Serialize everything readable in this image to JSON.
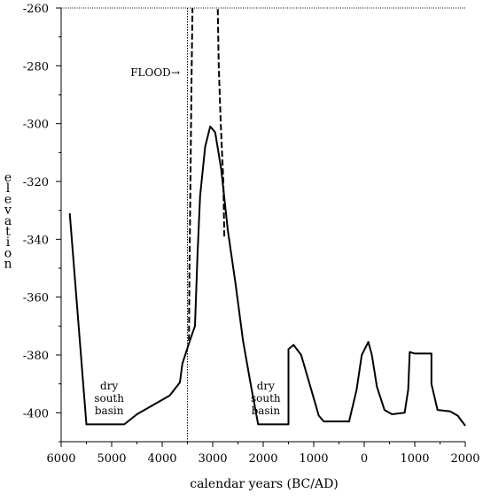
{
  "chart_data": {
    "type": "line",
    "xlabel": "calendar years (BC/AD)",
    "ylabel": "elevation",
    "xlim": [
      -6000,
      2000
    ],
    "ylim": [
      -410,
      -260
    ],
    "x_ticks": [
      {
        "value": -6000,
        "label": "6000"
      },
      {
        "value": -5000,
        "label": "5000"
      },
      {
        "value": -4000,
        "label": "4000"
      },
      {
        "value": -3000,
        "label": "3000"
      },
      {
        "value": -2000,
        "label": "2000"
      },
      {
        "value": -1000,
        "label": "1000"
      },
      {
        "value": 0,
        "label": "0"
      },
      {
        "value": 1000,
        "label": "1000"
      },
      {
        "value": 2000,
        "label": "2000"
      }
    ],
    "y_ticks": [
      {
        "value": -260,
        "label": "-260"
      },
      {
        "value": -280,
        "label": "-280"
      },
      {
        "value": -300,
        "label": "-300"
      },
      {
        "value": -320,
        "label": "-320"
      },
      {
        "value": -340,
        "label": "-340"
      },
      {
        "value": -360,
        "label": "-360"
      },
      {
        "value": -380,
        "label": "-380"
      },
      {
        "value": -400,
        "label": "-400"
      }
    ],
    "grid": false,
    "series": [
      {
        "style": "solid",
        "points": [
          [
            -5830,
            -331
          ],
          [
            -5500,
            -404
          ],
          [
            -4750,
            -404
          ],
          [
            -4500,
            -400.5
          ],
          [
            -4200,
            -397.5
          ],
          [
            -3850,
            -394
          ],
          [
            -3650,
            -389.5
          ],
          [
            -3600,
            -383
          ],
          [
            -3450,
            -375
          ],
          [
            -3350,
            -370
          ],
          [
            -3300,
            -345
          ],
          [
            -3250,
            -325
          ],
          [
            -3150,
            -308
          ],
          [
            -3050,
            -301
          ],
          [
            -2950,
            -303
          ],
          [
            -2830,
            -316
          ],
          [
            -2700,
            -337
          ],
          [
            -2550,
            -355
          ],
          [
            -2400,
            -375
          ],
          [
            -2250,
            -390
          ],
          [
            -2100,
            -404
          ],
          [
            -1500,
            -404
          ],
          [
            -1500,
            -378
          ],
          [
            -1400,
            -376.5
          ],
          [
            -1250,
            -380
          ],
          [
            -1050,
            -392
          ],
          [
            -900,
            -401
          ],
          [
            -800,
            -403
          ],
          [
            -300,
            -403
          ],
          [
            -150,
            -392
          ],
          [
            -50,
            -380
          ],
          [
            80,
            -375.5
          ],
          [
            150,
            -380
          ],
          [
            250,
            -391
          ],
          [
            400,
            -399
          ],
          [
            550,
            -400.5
          ],
          [
            800,
            -400
          ],
          [
            870,
            -392
          ],
          [
            900,
            -379
          ],
          [
            1000,
            -379.5
          ],
          [
            1330,
            -379.5
          ],
          [
            1330,
            -390
          ],
          [
            1450,
            -399
          ],
          [
            1700,
            -399.5
          ],
          [
            1850,
            -401
          ],
          [
            2000,
            -404.5
          ]
        ]
      },
      {
        "style": "dashed",
        "points": [
          [
            -3470,
            -375
          ],
          [
            -3460,
            -350
          ],
          [
            -3440,
            -320
          ],
          [
            -3420,
            -285
          ],
          [
            -3400,
            -260
          ]
        ]
      },
      {
        "style": "dashed",
        "points": [
          [
            -2770,
            -339
          ],
          [
            -2790,
            -320
          ],
          [
            -2840,
            -300
          ],
          [
            -2880,
            -280
          ],
          [
            -2900,
            -260
          ]
        ]
      }
    ],
    "reference_lines": [
      {
        "orientation": "vertical",
        "x": -3500,
        "style": "dotted"
      },
      {
        "orientation": "horizontal",
        "y": -260,
        "style": "dotted"
      }
    ],
    "annotations": [
      {
        "text": "FLOOD",
        "arrow": "→",
        "x": -4000,
        "y": -282
      },
      {
        "lines": [
          "dry",
          "south",
          "basin"
        ],
        "x": -5050,
        "y": -392
      },
      {
        "lines": [
          "dry",
          "south",
          "basin"
        ],
        "x": -1950,
        "y": -392
      }
    ]
  }
}
